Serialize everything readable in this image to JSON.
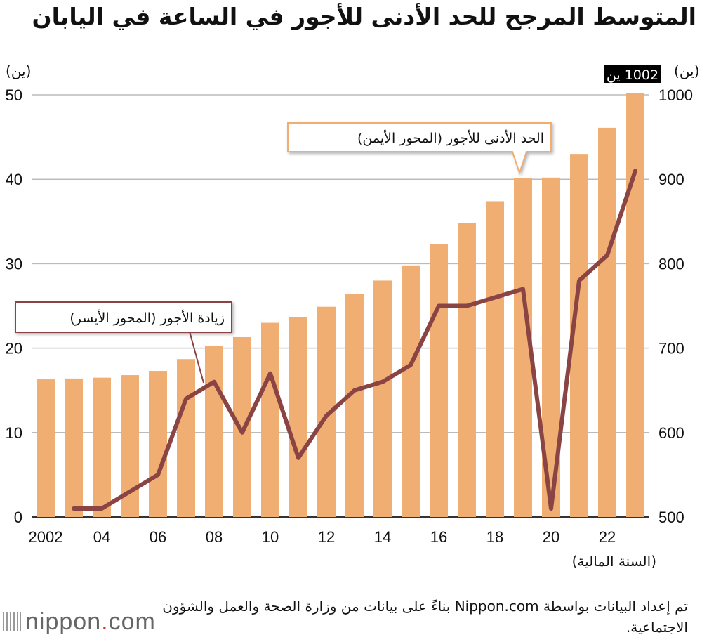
{
  "title": "المتوسط المرجح للحد الأدنى للأجور في الساعة في اليابان",
  "source": "تم إعداد البيانات بواسطة Nippon.com بناءً على بيانات من وزارة الصحة والعمل والشؤون الاجتماعية.",
  "logo": {
    "name": "nippon",
    "dot": ".",
    "suffix": "com"
  },
  "chart_data": {
    "type": "bar+line",
    "title": "المتوسط المرجح للحد الأدنى للأجور في الساعة في اليابان",
    "xlabel": "(السنة المالية)",
    "left_unit": "(ين)",
    "right_unit": "(ين)",
    "left_ylim": [
      0,
      50
    ],
    "right_ylim": [
      500,
      1000
    ],
    "left_ticks": [
      "0",
      "10",
      "20",
      "30",
      "40",
      "50"
    ],
    "right_ticks": [
      "500",
      "600",
      "700",
      "800",
      "900",
      "1000"
    ],
    "x_tick_labels": [
      "2002",
      "04",
      "06",
      "08",
      "10",
      "12",
      "14",
      "16",
      "18",
      "20",
      "22"
    ],
    "years": [
      2002,
      2003,
      2004,
      2005,
      2006,
      2007,
      2008,
      2009,
      2010,
      2011,
      2012,
      2013,
      2014,
      2015,
      2016,
      2017,
      2018,
      2019,
      2020,
      2021,
      2022,
      2023
    ],
    "series": [
      {
        "name": "الحد الأدنى للأجور (المحور الأيمن)",
        "type": "bar",
        "axis": "right",
        "color": "#f0ae73",
        "values": [
          663,
          664,
          665,
          668,
          673,
          687,
          703,
          713,
          730,
          737,
          749,
          764,
          780,
          798,
          823,
          848,
          874,
          901,
          902,
          930,
          961,
          1002
        ]
      },
      {
        "name": "زيادة الأجور (المحور الأيسر)",
        "type": "line",
        "axis": "left",
        "color": "#8b4444",
        "values": [
          null,
          1,
          1,
          3,
          5,
          14,
          16,
          10,
          17,
          7,
          12,
          15,
          16,
          18,
          25,
          25,
          26,
          27,
          1,
          28,
          31,
          41
        ]
      }
    ],
    "annotations": {
      "last_bar_label": "1002 ين"
    },
    "grid": true
  }
}
